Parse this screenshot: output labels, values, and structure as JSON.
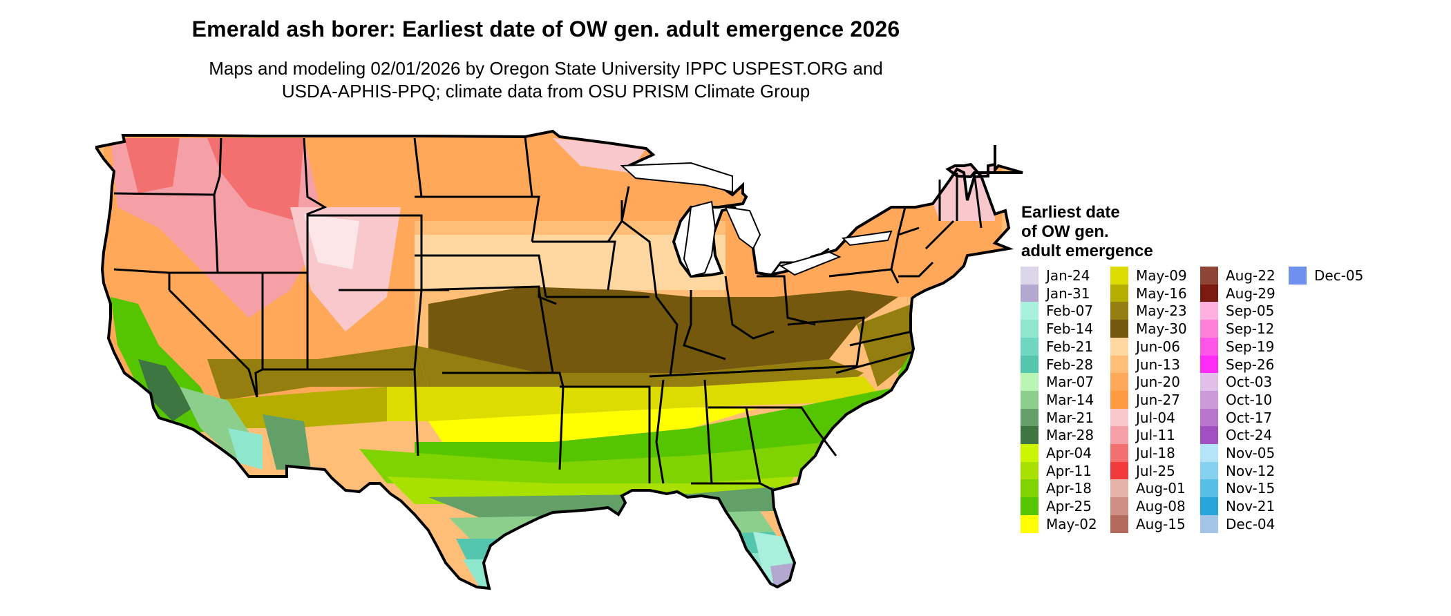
{
  "title": "Emerald ash borer: Earliest date of OW gen. adult emergence 2026",
  "subtitle_lines": [
    "Maps and modeling 02/01/2026 by Oregon State University IPPC USPEST.ORG and",
    "USDA-APHIS-PPQ; climate data from OSU PRISM Climate Group"
  ],
  "legend": {
    "title_lines": [
      "Earliest date",
      "of OW gen.",
      "adult emergence"
    ],
    "columns": [
      [
        {
          "label": "Jan-24",
          "color": "#dcd6ea"
        },
        {
          "label": "Jan-31",
          "color": "#b3a8d0"
        },
        {
          "label": "Feb-07",
          "color": "#a8f0dc"
        },
        {
          "label": "Feb-14",
          "color": "#8ee6cc"
        },
        {
          "label": "Feb-21",
          "color": "#6fd6bf"
        },
        {
          "label": "Feb-28",
          "color": "#54c6ad"
        },
        {
          "label": "Mar-07",
          "color": "#b8f5b2"
        },
        {
          "label": "Mar-14",
          "color": "#8ccf8c"
        },
        {
          "label": "Mar-21",
          "color": "#62a067"
        },
        {
          "label": "Mar-28",
          "color": "#3d7640"
        },
        {
          "label": "Apr-04",
          "color": "#ccf500"
        },
        {
          "label": "Apr-11",
          "color": "#a8e000"
        },
        {
          "label": "Apr-18",
          "color": "#7fd300"
        },
        {
          "label": "Apr-25",
          "color": "#55c500"
        },
        {
          "label": "May-02",
          "color": "#ffff00"
        }
      ],
      [
        {
          "label": "May-09",
          "color": "#dcdc00"
        },
        {
          "label": "May-16",
          "color": "#b5ae00"
        },
        {
          "label": "May-23",
          "color": "#957e10"
        },
        {
          "label": "May-30",
          "color": "#74580d"
        },
        {
          "label": "Jun-06",
          "color": "#ffd7a0"
        },
        {
          "label": "Jun-13",
          "color": "#ffbe78"
        },
        {
          "label": "Jun-20",
          "color": "#ffa85a"
        },
        {
          "label": "Jun-27",
          "color": "#ff9a40"
        },
        {
          "label": "Jul-04",
          "color": "#f8c8cc"
        },
        {
          "label": "Jul-11",
          "color": "#f4a0a6"
        },
        {
          "label": "Jul-18",
          "color": "#f27070"
        },
        {
          "label": "Jul-25",
          "color": "#f03a3c"
        },
        {
          "label": "Aug-01",
          "color": "#e5b3aa"
        },
        {
          "label": "Aug-08",
          "color": "#cf8f84"
        },
        {
          "label": "Aug-15",
          "color": "#b56a5e"
        }
      ],
      [
        {
          "label": "Aug-22",
          "color": "#8f4535"
        },
        {
          "label": "Aug-29",
          "color": "#7a1a10"
        },
        {
          "label": "Sep-05",
          "color": "#ffb0e0"
        },
        {
          "label": "Sep-12",
          "color": "#ff80d8"
        },
        {
          "label": "Sep-19",
          "color": "#ff55e8"
        },
        {
          "label": "Sep-26",
          "color": "#ff2af5"
        },
        {
          "label": "Oct-03",
          "color": "#e0c0e8"
        },
        {
          "label": "Oct-10",
          "color": "#cc9ad8"
        },
        {
          "label": "Oct-17",
          "color": "#b877cc"
        },
        {
          "label": "Oct-24",
          "color": "#a050c0"
        },
        {
          "label": "Nov-05",
          "color": "#b4e4f8"
        },
        {
          "label": "Nov-12",
          "color": "#86d0f0"
        },
        {
          "label": "Nov-15",
          "color": "#56bfe6"
        },
        {
          "label": "Nov-21",
          "color": "#28a6dc"
        },
        {
          "label": "Dec-04",
          "color": "#a4c4e8"
        }
      ],
      [
        {
          "label": "Dec-05",
          "color": "#7090f0"
        }
      ]
    ]
  }
}
